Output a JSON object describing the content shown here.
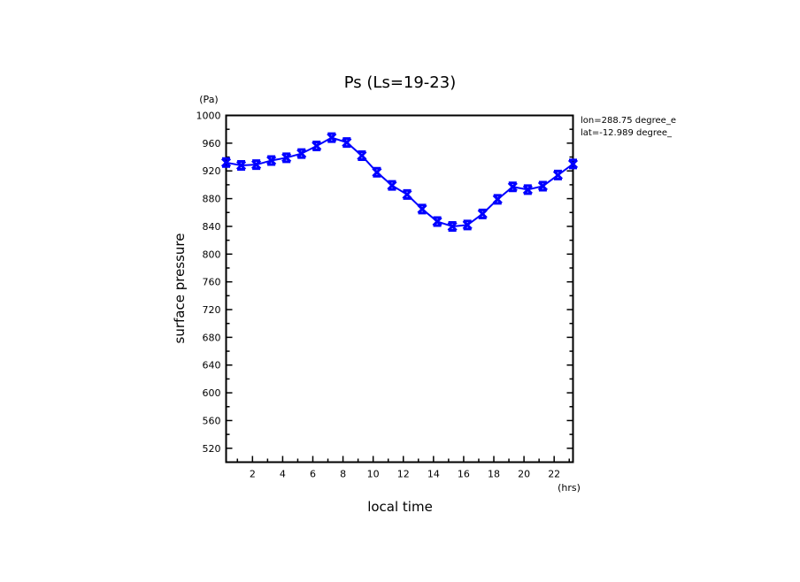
{
  "chart_data": {
    "type": "line",
    "title": "Ps (Ls=19-23)",
    "xlabel": "local time",
    "ylabel": "surface pressure",
    "x_unit": "(hrs)",
    "y_unit": "(Pa)",
    "xlim": [
      0.25,
      23.25
    ],
    "ylim": [
      500,
      1000
    ],
    "xticks": [
      2,
      4,
      6,
      8,
      10,
      12,
      14,
      16,
      18,
      20,
      22
    ],
    "yticks": [
      520,
      560,
      600,
      640,
      680,
      720,
      760,
      800,
      840,
      880,
      920,
      960,
      1000
    ],
    "grid": false,
    "annotations": [
      "lon=288.75 degree_e",
      "lat=-12.989 degree_"
    ],
    "series": [
      {
        "name": "Ps",
        "color": "#0000ff",
        "marker": "x",
        "x": [
          0.25,
          1.25,
          2.25,
          3.25,
          4.25,
          5.25,
          6.25,
          7.25,
          8.25,
          9.25,
          10.25,
          11.25,
          12.25,
          13.25,
          14.25,
          15.25,
          16.25,
          17.25,
          18.25,
          19.25,
          20.25,
          21.25,
          22.25,
          23.25
        ],
        "values": [
          932,
          928,
          929,
          935,
          939,
          945,
          956,
          968,
          961,
          942,
          918,
          899,
          886,
          865,
          847,
          840,
          842,
          858,
          879,
          897,
          893,
          898,
          914,
          930
        ]
      }
    ]
  }
}
